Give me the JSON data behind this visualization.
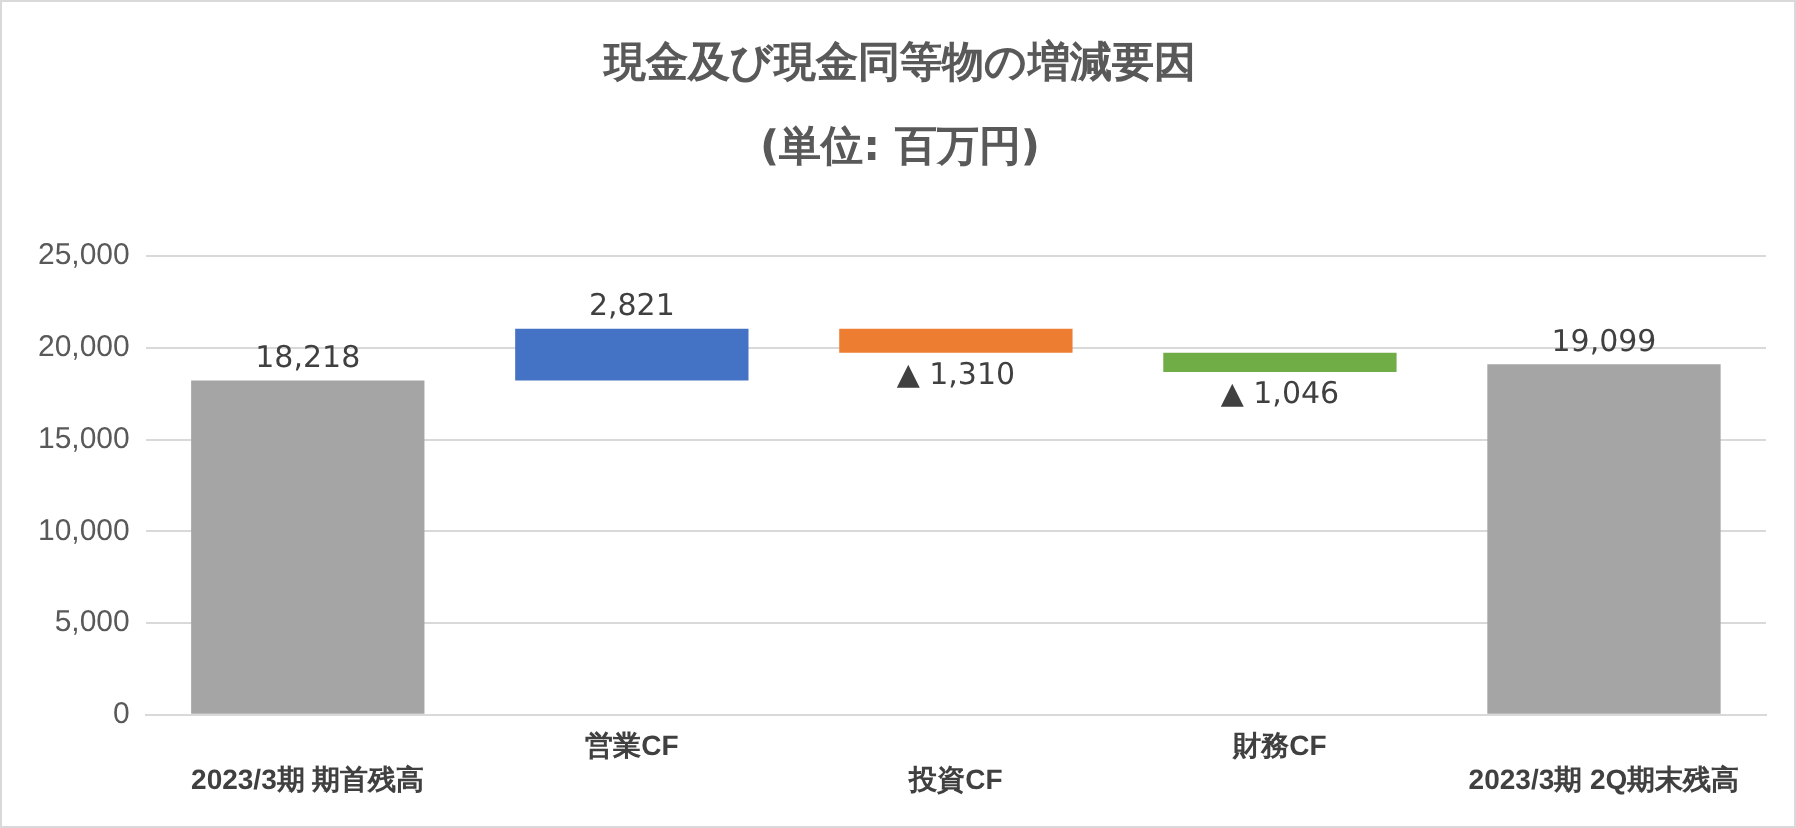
{
  "chart_data": {
    "type": "bar",
    "title": "現金及び現金同等物の増減要因",
    "subtitle": "(単位: 百万円)",
    "categories": [
      "2023/3期 期首残高",
      "営業CF",
      "投資CF",
      "財務CF",
      "2023/3期 2Q期末残高"
    ],
    "values": [
      18218,
      2821,
      -1310,
      -1046,
      19099
    ],
    "base": [
      0,
      18218,
      21039,
      19729,
      0
    ],
    "colors": [
      "#a5a5a5",
      "#4472c4",
      "#ed7d31",
      "#70ad47",
      "#a5a5a5"
    ],
    "value_labels": [
      "18,218",
      "2,821",
      "▲ 1,310",
      "▲ 1,046",
      "19,099"
    ],
    "ylim": [
      0,
      25000
    ],
    "yticks": [
      0,
      {
        "value": 5000,
        "label": "5,000"
      },
      {
        "value": 10000,
        "label": "10,000"
      },
      {
        "value": 15000,
        "label": "15,000"
      },
      {
        "value": 20000,
        "label": "20,000"
      },
      {
        "value": 25000,
        "label": "25,000"
      }
    ],
    "grid": "y",
    "legend": false
  }
}
